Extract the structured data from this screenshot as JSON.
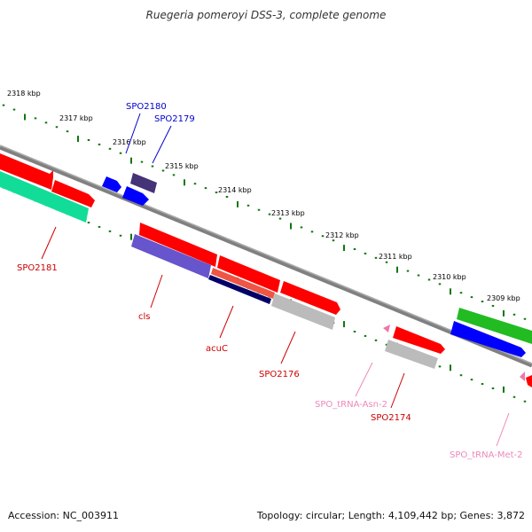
{
  "header": {
    "title": "Ruegeria pomeroyi DSS-3, complete genome"
  },
  "footer": {
    "accession": "Accession: NC_003911",
    "topology": "Topology: circular; Length: 4,109,442 bp; Genes: 3,872"
  },
  "map": {
    "tick_labels": [
      "2318 kbp",
      "2317 kbp",
      "2316 kbp",
      "2315 kbp",
      "2314 kbp",
      "2313 kbp",
      "2312 kbp",
      "2311 kbp",
      "2310 kbp",
      "2309 kbp"
    ],
    "gene_labels": [
      "SPO2180",
      "SPO2179",
      "SPO2181",
      "cls",
      "acuC",
      "SPO2176",
      "SPO_tRNA-Asn-2",
      "SPO2174",
      "SPO_tRNA-Met-2"
    ],
    "colors": {
      "cds_red": "#ff0000",
      "cds_blue": "#0000ff",
      "cds_purple": "#6655cc",
      "cds_navy": "#000066",
      "cds_salmon": "#ee5544",
      "cds_gray": "#bbbbbb",
      "cds_green": "#22bb22",
      "cds_teal": "#11dd99",
      "trna_pink": "#ee77aa",
      "label_red": "#cc0000",
      "label_blue": "#0000cc",
      "label_pink": "#ee88bb",
      "backbone": "#808080",
      "tick_green": "#117711"
    }
  }
}
